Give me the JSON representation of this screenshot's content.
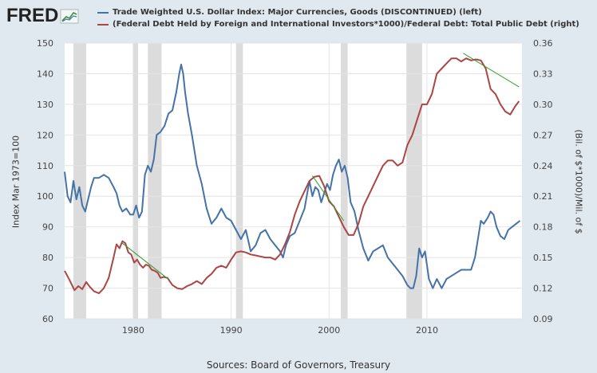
{
  "brand": {
    "name": "FRED",
    "icon": "fred-chart-logo-icon"
  },
  "legend": [
    {
      "label": "Trade Weighted U.S. Dollar Index: Major Currencies, Goods (DISCONTINUED) (left)",
      "color": "#4572a7"
    },
    {
      "label": "(Federal Debt Held by Foreign and International Investors*1000)/Federal Debt: Total Public Debt (right)",
      "color": "#aa4643"
    }
  ],
  "source": "Sources: Board of Governors, Treasury",
  "chart_data": {
    "type": "line",
    "xlabel": "",
    "ylabel": "Index Mar 1973=100",
    "y2label": "(Bil. of $*1000)/Mil. of $",
    "xlim": [
      1973.0,
      2019.7
    ],
    "ylim": [
      60,
      150
    ],
    "y2lim": [
      0.09,
      0.36
    ],
    "x_ticks": [
      1980,
      1990,
      2000,
      2010
    ],
    "y_ticks": [
      60,
      70,
      80,
      90,
      100,
      110,
      120,
      130,
      140,
      150
    ],
    "y2_ticks": [
      "0.09",
      "0.12",
      "0.15",
      "0.18",
      "0.21",
      "0.24",
      "0.27",
      "0.30",
      "0.33",
      "0.36"
    ],
    "grid": true,
    "recessions": [
      [
        1973.9,
        1975.2
      ],
      [
        1980.0,
        1980.5
      ],
      [
        1981.5,
        1982.9
      ],
      [
        1990.5,
        1991.2
      ],
      [
        2001.2,
        2001.9
      ],
      [
        2007.9,
        2009.5
      ]
    ],
    "series": [
      {
        "name": "Trade Weighted U.S. Dollar Index: Major Currencies, Goods (DISCONTINUED) (left)",
        "axis": "left",
        "color": "#4572a7",
        "x": [
          1973.0,
          1973.3,
          1973.6,
          1973.9,
          1974.2,
          1974.5,
          1974.8,
          1975.1,
          1975.4,
          1975.7,
          1976.0,
          1976.5,
          1977.0,
          1977.5,
          1978.0,
          1978.3,
          1978.6,
          1978.9,
          1979.3,
          1979.7,
          1980.0,
          1980.3,
          1980.6,
          1980.9,
          1981.2,
          1981.5,
          1981.8,
          1982.1,
          1982.4,
          1982.8,
          1983.2,
          1983.6,
          1984.0,
          1984.4,
          1984.7,
          1984.9,
          1985.1,
          1985.3,
          1985.6,
          1986.0,
          1986.5,
          1987.0,
          1987.5,
          1988.0,
          1988.5,
          1989.0,
          1989.5,
          1990.0,
          1990.5,
          1991.0,
          1991.5,
          1992.0,
          1992.5,
          1993.0,
          1993.5,
          1994.0,
          1994.5,
          1995.0,
          1995.3,
          1995.6,
          1996.0,
          1996.5,
          1997.0,
          1997.5,
          1998.0,
          1998.3,
          1998.6,
          1998.9,
          1999.2,
          1999.5,
          1999.8,
          2000.1,
          2000.4,
          2000.7,
          2001.0,
          2001.3,
          2001.6,
          2001.9,
          2002.2,
          2002.6,
          2003.0,
          2003.5,
          2004.0,
          2004.5,
          2005.0,
          2005.5,
          2006.0,
          2006.5,
          2007.0,
          2007.5,
          2008.0,
          2008.3,
          2008.6,
          2008.9,
          2009.2,
          2009.5,
          2009.8,
          2010.2,
          2010.6,
          2011.0,
          2011.5,
          2012.0,
          2012.5,
          2013.0,
          2013.5,
          2014.0,
          2014.5,
          2014.9,
          2015.2,
          2015.5,
          2015.8,
          2016.2,
          2016.5,
          2016.8,
          2017.1,
          2017.5,
          2017.9,
          2018.3,
          2018.7,
          2019.1,
          2019.5
        ],
        "y": [
          108,
          100,
          98,
          105,
          99,
          103,
          97,
          95,
          99,
          103,
          106,
          106,
          107,
          106,
          103,
          101,
          97,
          95,
          96,
          94,
          94,
          97,
          93,
          95,
          107,
          110,
          108,
          112,
          120,
          121,
          123,
          127,
          128,
          134,
          140,
          143,
          140,
          134,
          127,
          120,
          110,
          104,
          96,
          91,
          93,
          96,
          93,
          92,
          89,
          86,
          89,
          82,
          84,
          88,
          89,
          86,
          84,
          82,
          80,
          84,
          87,
          88,
          92,
          96,
          105,
          100,
          103,
          102,
          98,
          101,
          104,
          102,
          107,
          110,
          112,
          108,
          110,
          106,
          98,
          95,
          89,
          83,
          79,
          82,
          83,
          84,
          80,
          78,
          76,
          74,
          71,
          70,
          70,
          74,
          83,
          80,
          82,
          73,
          70,
          73,
          70,
          73,
          74,
          75,
          76,
          76,
          76,
          80,
          86,
          92,
          91,
          93,
          95,
          94,
          90,
          87,
          86,
          89,
          90,
          91,
          92
        ]
      },
      {
        "name": "(Federal Debt Held by Foreign and International Investors*1000)/Federal Debt: Total Public Debt (right)",
        "axis": "right",
        "color": "#aa4643",
        "x": [
          1973.0,
          1973.5,
          1974.0,
          1974.4,
          1974.8,
          1975.2,
          1975.6,
          1976.0,
          1976.5,
          1977.0,
          1977.5,
          1978.0,
          1978.3,
          1978.6,
          1978.9,
          1979.2,
          1979.5,
          1979.8,
          1980.1,
          1980.4,
          1980.7,
          1981.0,
          1981.3,
          1981.6,
          1981.9,
          1982.2,
          1982.5,
          1982.8,
          1983.1,
          1983.5,
          1984.0,
          1984.5,
          1985.0,
          1985.5,
          1986.0,
          1986.5,
          1987.0,
          1987.5,
          1988.0,
          1988.5,
          1989.0,
          1989.5,
          1990.0,
          1990.5,
          1991.0,
          1991.5,
          1992.0,
          1992.5,
          1993.0,
          1993.5,
          1994.0,
          1994.5,
          1995.0,
          1995.5,
          1996.0,
          1996.5,
          1997.0,
          1997.5,
          1998.0,
          1998.5,
          1999.0,
          1999.5,
          2000.0,
          2000.5,
          2001.0,
          2001.5,
          2002.0,
          2002.5,
          2003.0,
          2003.5,
          2004.0,
          2004.5,
          2005.0,
          2005.5,
          2006.0,
          2006.5,
          2007.0,
          2007.5,
          2008.0,
          2008.5,
          2009.0,
          2009.5,
          2010.0,
          2010.5,
          2011.0,
          2011.5,
          2012.0,
          2012.5,
          2013.0,
          2013.5,
          2014.0,
          2014.5,
          2015.0,
          2015.5,
          2016.0,
          2016.5,
          2017.0,
          2017.5,
          2018.0,
          2018.5,
          2019.0,
          2019.4
        ],
        "y": [
          0.137,
          0.128,
          0.118,
          0.122,
          0.119,
          0.126,
          0.121,
          0.117,
          0.115,
          0.12,
          0.13,
          0.15,
          0.163,
          0.159,
          0.166,
          0.164,
          0.155,
          0.153,
          0.145,
          0.148,
          0.143,
          0.14,
          0.143,
          0.142,
          0.138,
          0.137,
          0.135,
          0.13,
          0.131,
          0.13,
          0.123,
          0.12,
          0.119,
          0.122,
          0.124,
          0.127,
          0.124,
          0.13,
          0.134,
          0.14,
          0.142,
          0.14,
          0.148,
          0.155,
          0.156,
          0.155,
          0.153,
          0.152,
          0.151,
          0.15,
          0.15,
          0.148,
          0.153,
          0.163,
          0.175,
          0.192,
          0.205,
          0.215,
          0.225,
          0.229,
          0.23,
          0.22,
          0.205,
          0.2,
          0.19,
          0.18,
          0.172,
          0.172,
          0.183,
          0.2,
          0.21,
          0.22,
          0.23,
          0.24,
          0.245,
          0.245,
          0.24,
          0.243,
          0.26,
          0.27,
          0.285,
          0.3,
          0.3,
          0.31,
          0.33,
          0.335,
          0.34,
          0.345,
          0.345,
          0.342,
          0.345,
          0.343,
          0.344,
          0.343,
          0.335,
          0.315,
          0.31,
          0.3,
          0.293,
          0.29,
          0.298,
          0.303
        ]
      }
    ],
    "trendlines": [
      {
        "axis": "right",
        "color": "#2e9e2e",
        "x": [
          1978.9,
          1983.7
        ],
        "y": [
          0.164,
          0.128
        ]
      },
      {
        "axis": "right",
        "color": "#2e9e2e",
        "x": [
          1998.3,
          2001.5
        ],
        "y": [
          0.23,
          0.186
        ]
      },
      {
        "axis": "right",
        "color": "#2e9e2e",
        "x": [
          2013.7,
          2019.4
        ],
        "y": [
          0.35,
          0.317
        ]
      }
    ]
  }
}
